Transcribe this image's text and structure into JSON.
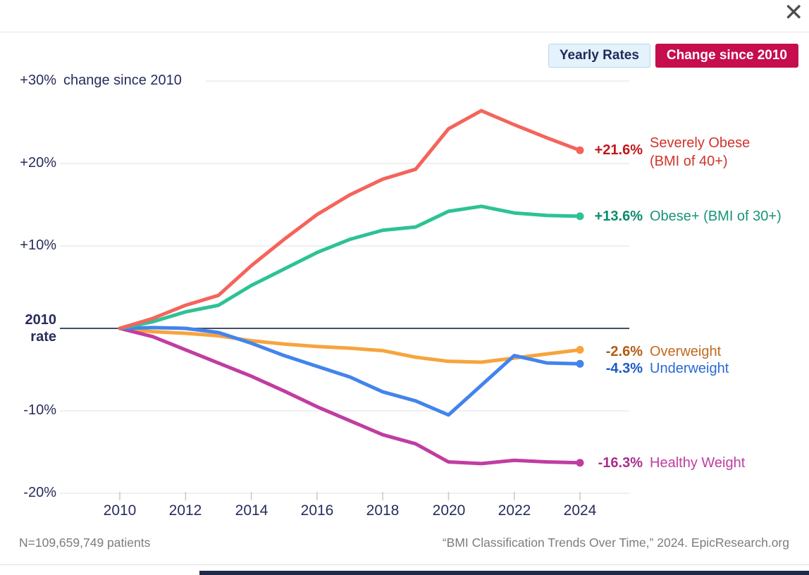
{
  "header": {
    "close_icon": "✕"
  },
  "legend": {
    "yearly_button": "Yearly Rates",
    "change_button": "Change since 2010",
    "yearly_bg": "#e3f2fb",
    "change_bg": "#c60d4e"
  },
  "y_axis": {
    "p30": "+30%",
    "p20": "+20%",
    "p10": "+10%",
    "zero": "2010\nrate",
    "m10": "-10%",
    "m20": "-20%",
    "note": "change since 2010"
  },
  "chart_data": {
    "type": "line",
    "title": "change since 2010",
    "xlabel": "",
    "ylabel": "% change since 2010",
    "ylim": [
      -20,
      30
    ],
    "grid": true,
    "grid_color": "#ebebeb",
    "zero_line_color": "#454e69",
    "tick_color": "#c8c8c8",
    "x": [
      2010,
      2011,
      2012,
      2013,
      2014,
      2015,
      2016,
      2017,
      2018,
      2019,
      2020,
      2021,
      2022,
      2023,
      2024
    ],
    "x_ticks": [
      2010,
      2012,
      2014,
      2016,
      2018,
      2020,
      2022,
      2024
    ],
    "x_tick_labels": [
      "2010",
      "2012",
      "2014",
      "2016",
      "2018",
      "2020",
      "2022",
      "2024"
    ],
    "y_ticks": [
      30,
      20,
      10,
      0,
      -10,
      -20
    ],
    "series": [
      {
        "name": "Severely Obese (BMI of 40+)",
        "label": "Severely Obese\n(BMI of 40+)",
        "end_label": "+21.6%",
        "color": "#f4645c",
        "value_color": "#c3161b",
        "label_color": "#d0342c",
        "z": 5,
        "values": [
          0,
          1.2,
          2.8,
          4.0,
          7.6,
          10.8,
          13.8,
          16.2,
          18.1,
          19.3,
          24.2,
          26.4,
          24.7,
          23.1,
          21.6
        ]
      },
      {
        "name": "Obese+ (BMI of 30+)",
        "label": "Obese+ (BMI of 30+)",
        "end_label": "+13.6%",
        "color": "#2dc296",
        "value_color": "#0c8a6e",
        "label_color": "#1a9478",
        "z": 4,
        "values": [
          0,
          0.8,
          2.0,
          2.8,
          5.2,
          7.2,
          9.2,
          10.8,
          11.9,
          12.3,
          14.2,
          14.8,
          14.0,
          13.7,
          13.6
        ]
      },
      {
        "name": "Overweight",
        "label": "Overweight",
        "end_label": "-2.6%",
        "color": "#f7a43d",
        "value_color": "#b05c10",
        "label_color": "#c06a1d",
        "z": 1,
        "values": [
          0,
          -0.4,
          -0.6,
          -0.9,
          -1.5,
          -1.9,
          -2.2,
          -2.4,
          -2.7,
          -3.5,
          -4.0,
          -4.1,
          -3.6,
          -3.1,
          -2.6
        ]
      },
      {
        "name": "Underweight",
        "label": "Underweight",
        "end_label": "-4.3%",
        "color": "#4384ec",
        "value_color": "#1d5ac6",
        "label_color": "#2a6ad4",
        "z": 3,
        "values": [
          0,
          0.1,
          0.0,
          -0.5,
          -1.8,
          -3.3,
          -4.6,
          -5.9,
          -7.7,
          -8.8,
          -10.5,
          -6.9,
          -3.3,
          -4.2,
          -4.3
        ]
      },
      {
        "name": "Healthy Weight",
        "label": "Healthy Weight",
        "end_label": "-16.3%",
        "color": "#c03da1",
        "value_color": "#ab2d8d",
        "label_color": "#bd3da0",
        "z": 2,
        "values": [
          0,
          -1.0,
          -2.6,
          -4.2,
          -5.8,
          -7.6,
          -9.5,
          -11.2,
          -12.9,
          -14.0,
          -16.2,
          -16.4,
          -16.0,
          -16.2,
          -16.3
        ]
      }
    ],
    "legend_position": "top-right"
  },
  "footer": {
    "left": "N=109,659,749 patients",
    "right": "“BMI Classification Trends Over Time,” 2024. EpicResearch.org"
  }
}
